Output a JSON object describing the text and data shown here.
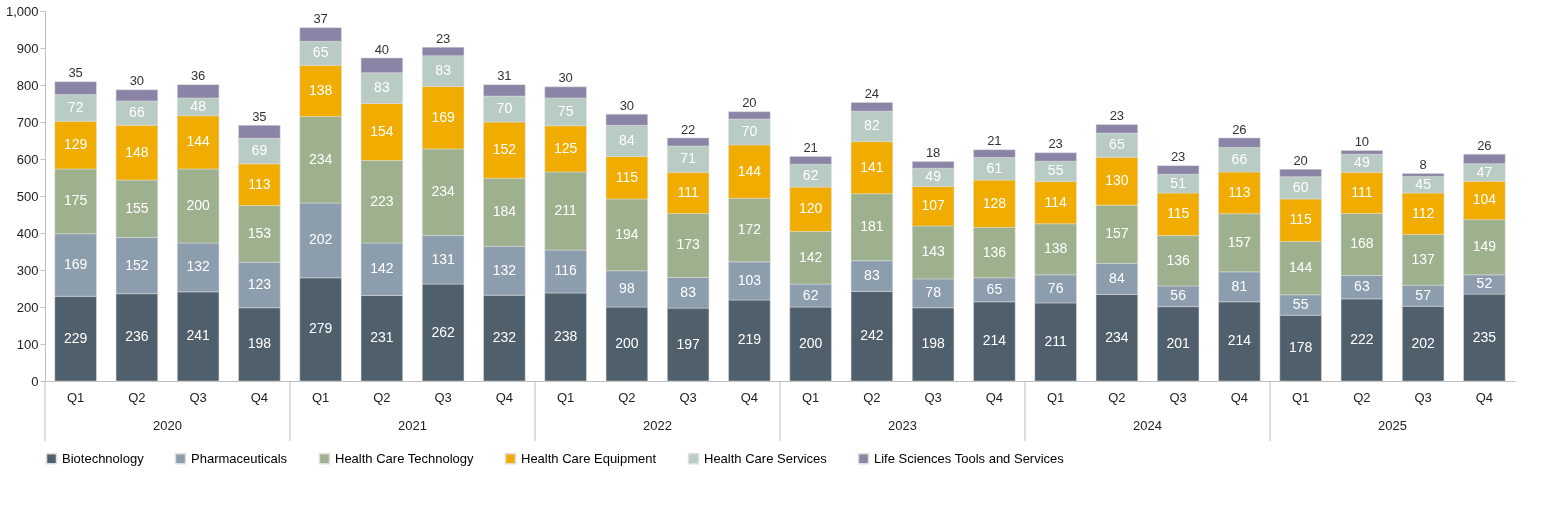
{
  "chart_data": {
    "type": "bar",
    "stacked": true,
    "data_labels": true,
    "legend": "bottom",
    "grid": false,
    "categories": [
      "Q1",
      "Q2",
      "Q3",
      "Q4",
      "Q1",
      "Q2",
      "Q3",
      "Q4",
      "Q1",
      "Q2",
      "Q3",
      "Q4",
      "Q1",
      "Q2",
      "Q3",
      "Q4",
      "Q1",
      "Q2",
      "Q3",
      "Q4",
      "Q1",
      "Q2",
      "Q3",
      "Q4"
    ],
    "annotations": [
      "2020",
      "2021",
      "2022",
      "2023",
      "2024",
      "2025"
    ],
    "ylim": [
      0,
      1000
    ],
    "yticks": [
      0,
      100,
      200,
      300,
      400,
      500,
      600,
      700,
      800,
      900,
      {
        "value": 1000,
        "label": "1,000"
      }
    ],
    "series": [
      {
        "name": "Biotechnology",
        "color": "#4f5f6b",
        "values": [
          229,
          236,
          241,
          198,
          279,
          231,
          262,
          232,
          238,
          200,
          197,
          219,
          200,
          242,
          198,
          214,
          211,
          234,
          201,
          214,
          178,
          222,
          202,
          235
        ]
      },
      {
        "name": "Pharmaceuticals",
        "color": "#8c9eae",
        "values": [
          169,
          152,
          132,
          123,
          202,
          142,
          131,
          132,
          116,
          98,
          83,
          103,
          62,
          83,
          78,
          65,
          76,
          84,
          56,
          81,
          55,
          63,
          57,
          52
        ]
      },
      {
        "name": "Health Care Technology",
        "color": "#9eb18e",
        "values": [
          175,
          155,
          200,
          153,
          234,
          223,
          234,
          184,
          211,
          194,
          173,
          172,
          142,
          181,
          143,
          136,
          138,
          157,
          136,
          157,
          144,
          168,
          137,
          149
        ]
      },
      {
        "name": "Health Care Equipment",
        "color": "#f0ad00",
        "values": [
          129,
          148,
          144,
          113,
          138,
          154,
          169,
          152,
          125,
          115,
          111,
          144,
          120,
          141,
          107,
          128,
          114,
          130,
          115,
          113,
          115,
          111,
          112,
          104
        ]
      },
      {
        "name": "Health Care Services",
        "color": "#b8ccc4",
        "values": [
          72,
          66,
          48,
          69,
          65,
          83,
          83,
          70,
          75,
          84,
          71,
          70,
          62,
          82,
          49,
          61,
          55,
          65,
          51,
          66,
          60,
          49,
          45,
          47
        ]
      },
      {
        "name": "Life Sciences Tools and Services",
        "color": "#8a84a6",
        "values": [
          35,
          30,
          36,
          35,
          37,
          40,
          23,
          31,
          30,
          30,
          22,
          20,
          21,
          24,
          18,
          21,
          23,
          23,
          23,
          26,
          20,
          10,
          8,
          26
        ]
      }
    ]
  }
}
